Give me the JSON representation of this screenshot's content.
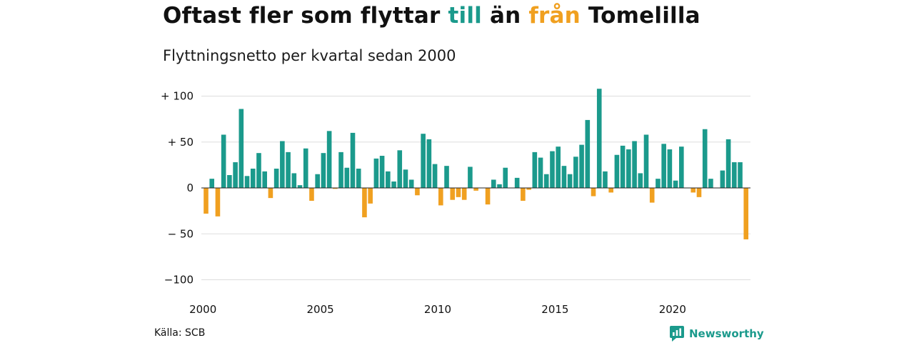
{
  "title": {
    "part1": "Oftast fler som flyttar ",
    "till": "till",
    "part2": " än ",
    "fran": "från",
    "part3": " Tomelilla"
  },
  "subtitle": "Flyttningsnetto per kvartal sedan 2000",
  "source": "Källa: SCB",
  "brand": {
    "name": "Newsworthy",
    "icon": "newsworthy-logo-icon"
  },
  "colors": {
    "positive": "#1b9a8c",
    "negative": "#f0a020",
    "grid": "#dddddd",
    "text": "#111111"
  },
  "chart_data": {
    "type": "bar",
    "title": "Oftast fler som flyttar till än från Tomelilla",
    "subtitle": "Flyttningsnetto per kvartal sedan 2000",
    "ylim": [
      -100,
      110
    ],
    "y_ticks": [
      100,
      50,
      0,
      -50,
      -100
    ],
    "y_tick_labels": [
      "+ 100",
      "+  50",
      "0",
      "− 50",
      "−100"
    ],
    "x_ticks": [
      2000,
      2005,
      2010,
      2015,
      2020
    ],
    "x_tick_labels": [
      "2000",
      "2005",
      "2010",
      "2015",
      "2020"
    ],
    "grid": true,
    "legend": "none",
    "x_start": 2000,
    "periods_per_year": 4,
    "values": [
      -28,
      10,
      -31,
      58,
      14,
      28,
      86,
      13,
      21,
      38,
      18,
      -11,
      21,
      51,
      39,
      16,
      3,
      43,
      -14,
      15,
      38,
      62,
      -1,
      39,
      22,
      60,
      21,
      -32,
      -17,
      32,
      35,
      18,
      7,
      41,
      20,
      9,
      -8,
      59,
      53,
      26,
      -19,
      24,
      -13,
      -10,
      -13,
      23,
      -3,
      0,
      -18,
      9,
      4,
      22,
      0,
      11,
      -14,
      -2,
      39,
      33,
      15,
      40,
      45,
      24,
      15,
      34,
      47,
      74,
      -9,
      108,
      18,
      -5,
      36,
      46,
      42,
      51,
      16,
      58,
      -16,
      10,
      48,
      42,
      8,
      45,
      0,
      -5,
      -10,
      64,
      10,
      0,
      19,
      53,
      28,
      28,
      -56
    ]
  }
}
